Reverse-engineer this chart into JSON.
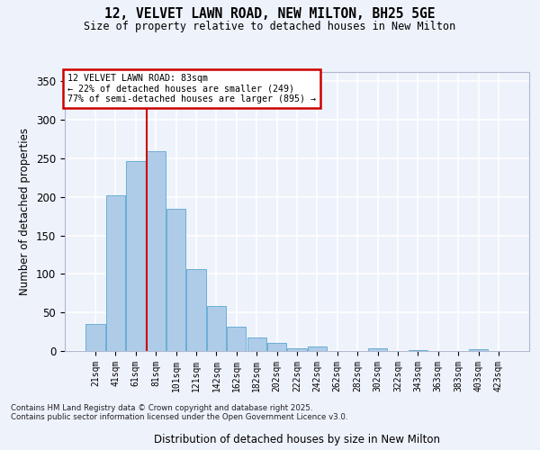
{
  "title_line1": "12, VELVET LAWN ROAD, NEW MILTON, BH25 5GE",
  "title_line2": "Size of property relative to detached houses in New Milton",
  "xlabel": "Distribution of detached houses by size in New Milton",
  "ylabel": "Number of detached properties",
  "categories": [
    "21sqm",
    "41sqm",
    "61sqm",
    "81sqm",
    "101sqm",
    "121sqm",
    "142sqm",
    "162sqm",
    "182sqm",
    "202sqm",
    "222sqm",
    "242sqm",
    "262sqm",
    "282sqm",
    "302sqm",
    "322sqm",
    "343sqm",
    "363sqm",
    "383sqm",
    "403sqm",
    "423sqm"
  ],
  "values": [
    35,
    202,
    246,
    259,
    185,
    106,
    58,
    32,
    18,
    10,
    4,
    6,
    0,
    0,
    3,
    0,
    1,
    0,
    0,
    2,
    0
  ],
  "bar_color": "#aecce8",
  "bar_edge_color": "#6aaed6",
  "background_color": "#eef2fb",
  "grid_color": "#ffffff",
  "annotation_text": "12 VELVET LAWN ROAD: 83sqm\n← 22% of detached houses are smaller (249)\n77% of semi-detached houses are larger (895) →",
  "annotation_box_color": "#ffffff",
  "annotation_box_edge_color": "#cc0000",
  "footer_line1": "Contains HM Land Registry data © Crown copyright and database right 2025.",
  "footer_line2": "Contains public sector information licensed under the Open Government Licence v3.0.",
  "ylim": [
    0,
    362
  ],
  "yticks": [
    0,
    50,
    100,
    150,
    200,
    250,
    300,
    350
  ],
  "red_line_index": 3
}
